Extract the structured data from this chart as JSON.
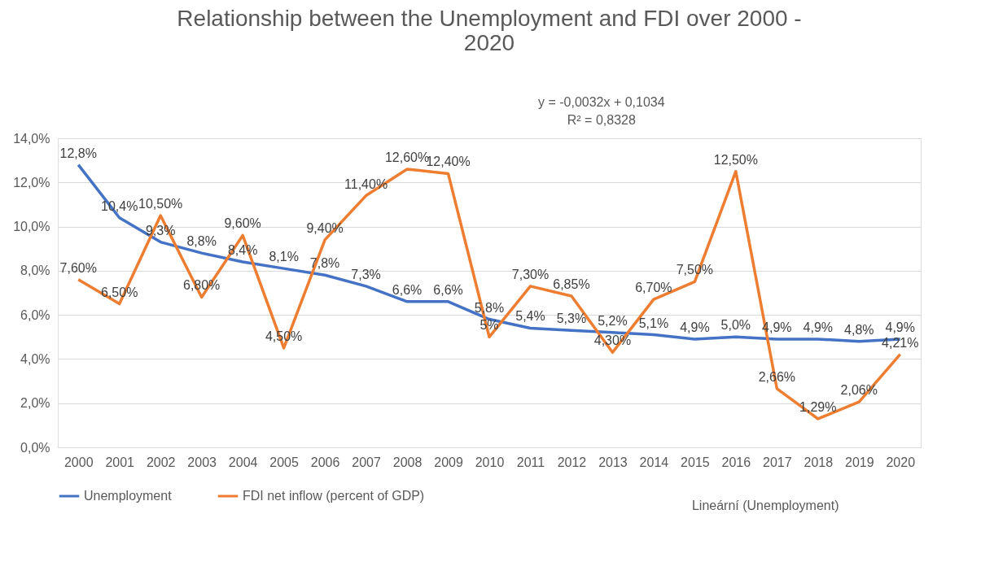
{
  "chart_data": {
    "type": "line",
    "title": "Relationship between the Unemployment and FDI over 2000 - 2020",
    "categories": [
      "2000",
      "2001",
      "2002",
      "2003",
      "2004",
      "2005",
      "2006",
      "2007",
      "2008",
      "2009",
      "2010",
      "2011",
      "2012",
      "2013",
      "2014",
      "2015",
      "2016",
      "2017",
      "2018",
      "2019",
      "2020"
    ],
    "series": [
      {
        "name": "Unemployment",
        "color": "#4472c4",
        "values": [
          12.8,
          10.4,
          9.3,
          8.8,
          8.4,
          8.1,
          7.8,
          7.3,
          6.6,
          6.6,
          5.8,
          5.4,
          5.3,
          5.2,
          5.1,
          4.9,
          5.0,
          4.9,
          4.9,
          4.8,
          4.9
        ],
        "value_labels": [
          "12,8%",
          "10,4%",
          "9,3%",
          "8,8%",
          "8,4%",
          "8,1%",
          "7,8%",
          "7,3%",
          "6,6%",
          "6,6%",
          "5,8%",
          "5,4%",
          "5,3%",
          "5,2%",
          "5,1%",
          "4,9%",
          "5,0%",
          "4,9%",
          "4,9%",
          "4,8%",
          "4,9%"
        ]
      },
      {
        "name": "FDI net inflow (percent of GDP)",
        "color": "#ed7d31",
        "values": [
          7.6,
          6.5,
          10.5,
          6.8,
          9.6,
          4.5,
          9.4,
          11.4,
          12.6,
          12.4,
          5,
          7.3,
          6.85,
          4.3,
          6.7,
          7.5,
          12.5,
          2.66,
          1.29,
          2.06,
          4.21
        ],
        "value_labels": [
          "7,60%",
          "6,50%",
          "10,50%",
          "6,80%",
          "9,60%",
          "4,50%",
          "9,40%",
          "11,40%",
          "12,60%",
          "12,40%",
          "5%",
          "7,30%",
          "6,85%",
          "4,30%",
          "6,70%",
          "7,50%",
          "12,50%",
          "2,66%",
          "1,29%",
          "2,06%",
          "4,21%"
        ]
      }
    ],
    "ylim": [
      0,
      14
    ],
    "yticks": [
      {
        "value": 0,
        "label": "0,0%"
      },
      {
        "value": 2,
        "label": "2,0%"
      },
      {
        "value": 4,
        "label": "4,0%"
      },
      {
        "value": 6,
        "label": "6,0%"
      },
      {
        "value": 8,
        "label": "8,0%"
      },
      {
        "value": 10,
        "label": "10,0%"
      },
      {
        "value": 12,
        "label": "12,0%"
      },
      {
        "value": 14,
        "label": "14,0%"
      }
    ],
    "grid": "y",
    "legend": "bottom",
    "line_style": "solid",
    "marker": "none",
    "annotations": [
      "y = -0,0032x + 0,1034",
      "R² = 0,8328",
      "Lineární (Unemployment)"
    ]
  }
}
